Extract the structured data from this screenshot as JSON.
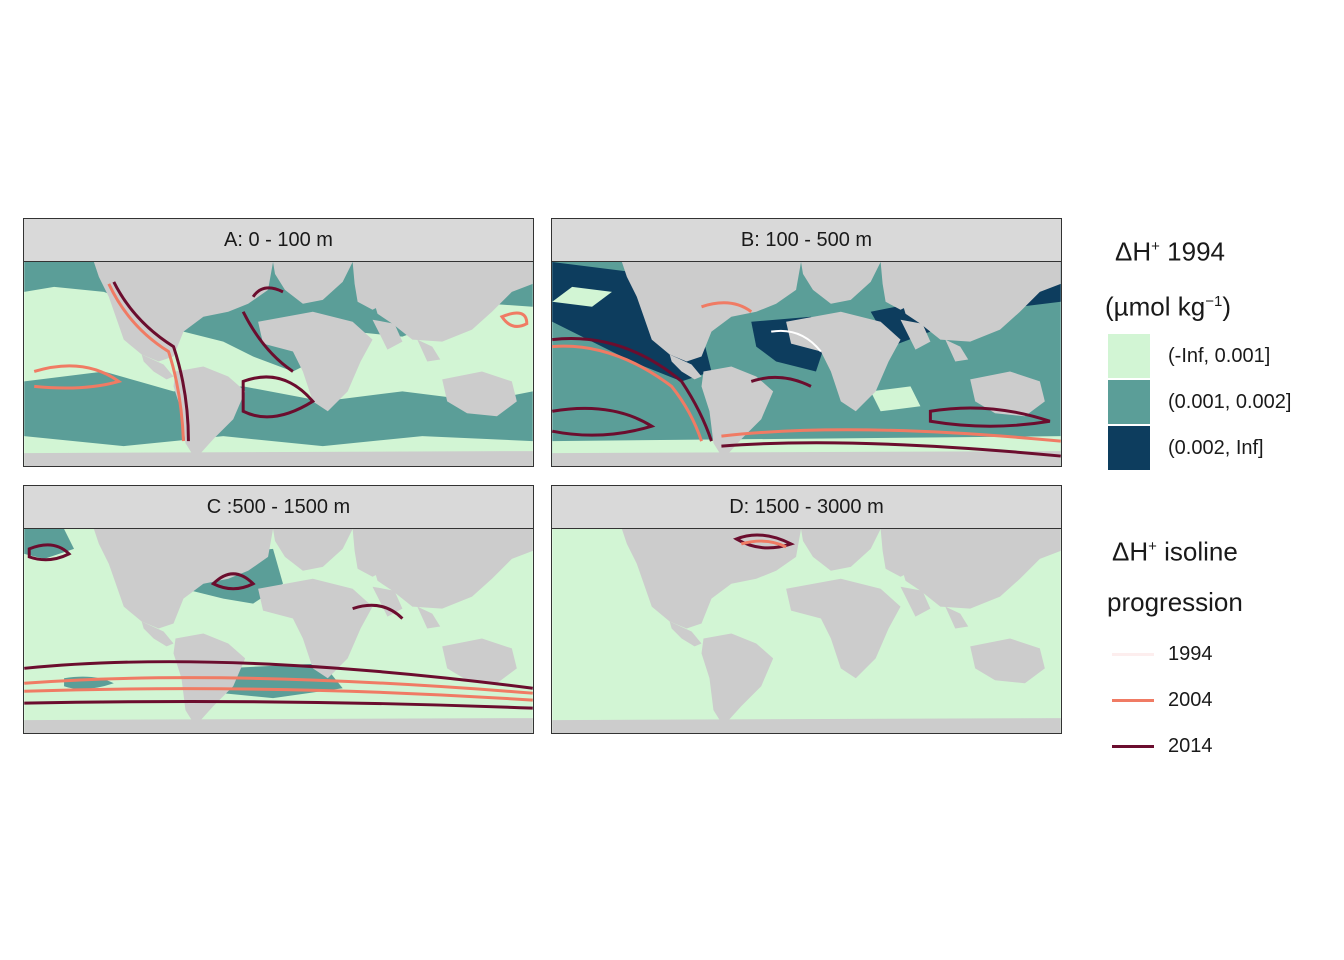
{
  "panels": [
    {
      "id": "A",
      "title": "A: 0 - 100 m"
    },
    {
      "id": "B",
      "title": "B: 100 - 500 m"
    },
    {
      "id": "C",
      "title": "C :500 - 1500 m"
    },
    {
      "id": "D",
      "title": "D: 1500 - 3000 m"
    }
  ],
  "legend_fill": {
    "title_line1_pre": "ΔH",
    "title_line1_sup": "+",
    "title_line1_post": " 1994",
    "title_line2_pre": "(µmol kg",
    "title_line2_sup": "−1",
    "title_line2_post": ")",
    "items": [
      {
        "label": "(-Inf, 0.001]",
        "color": "#d2f5d4"
      },
      {
        "label": "(0.001, 0.002]",
        "color": "#5b9e98"
      },
      {
        "label": "(0.002, Inf]",
        "color": "#0d3d5e"
      }
    ]
  },
  "legend_lines": {
    "title_line1_pre": "ΔH",
    "title_line1_sup": "+",
    "title_line1_post": " isoline",
    "title_line2": "progression",
    "items": [
      {
        "label": "1994",
        "color": "#fdeeee"
      },
      {
        "label": "2004",
        "color": "#f07b64"
      },
      {
        "label": "2014",
        "color": "#6b0d2e"
      }
    ]
  },
  "colors": {
    "land": "#cccccc",
    "ocean_white": "#ffffff"
  }
}
